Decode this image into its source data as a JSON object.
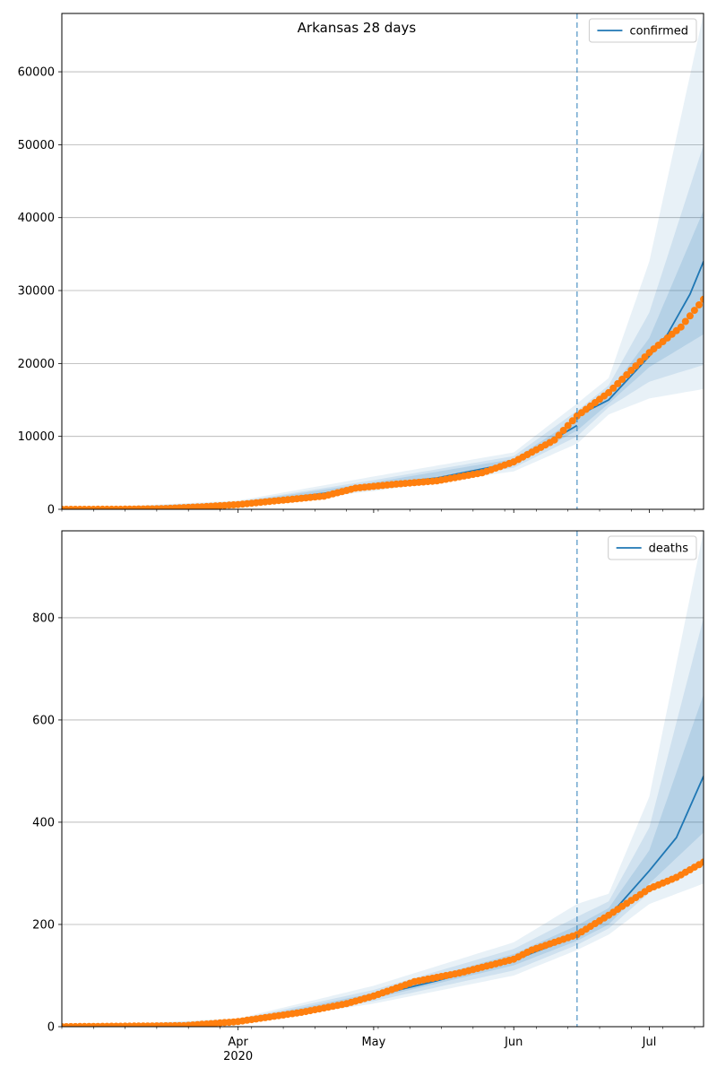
{
  "figure": {
    "title": "Arkansas 28 days"
  },
  "x_axis": {
    "start_date": "2020-02-22",
    "end_date": "2020-07-13",
    "forecast_start_date": "2020-06-15",
    "month_ticks": [
      {
        "date": "2020-04-01",
        "label": "Apr"
      },
      {
        "date": "2020-05-01",
        "label": "May"
      },
      {
        "date": "2020-06-01",
        "label": "Jun"
      },
      {
        "date": "2020-07-01",
        "label": "Jul"
      }
    ],
    "year_label": "2020",
    "year_label_date": "2020-04-01"
  },
  "colors": {
    "model_line": "#1f77b4",
    "observed": "#ff7f0e",
    "band": "#1f77b4",
    "grid": "#b0b0b0"
  },
  "chart_data": [
    {
      "type": "line",
      "panel": "top",
      "legend": [
        "confirmed"
      ],
      "legend_position": "top-right",
      "grid": "y",
      "ylim": [
        0,
        68000
      ],
      "yticks": [
        0,
        10000,
        20000,
        30000,
        40000,
        50000,
        60000
      ],
      "xlabel": "",
      "ylabel": "",
      "series": [
        {
          "name": "confirmed",
          "role": "model median",
          "points": [
            [
              "2020-02-22",
              0
            ],
            [
              "2020-03-10",
              100
            ],
            [
              "2020-03-20",
              300
            ],
            [
              "2020-04-01",
              800
            ],
            [
              "2020-04-15",
              1800
            ],
            [
              "2020-04-25",
              2600
            ],
            [
              "2020-05-01",
              3300
            ],
            [
              "2020-05-15",
              4300
            ],
            [
              "2020-06-01",
              6400
            ],
            [
              "2020-06-15",
              11500
            ]
          ]
        },
        {
          "name": "",
          "role": "model forecast",
          "points": [
            [
              "2020-06-15",
              12800
            ],
            [
              "2020-06-22",
              15000
            ],
            [
              "2020-07-01",
              21000
            ],
            [
              "2020-07-05",
              24000
            ],
            [
              "2020-07-10",
              29500
            ],
            [
              "2020-07-13",
              34000
            ]
          ]
        },
        {
          "name": "",
          "role": "observed",
          "points": [
            [
              "2020-02-22",
              0
            ],
            [
              "2020-03-05",
              10
            ],
            [
              "2020-03-15",
              80
            ],
            [
              "2020-03-25",
              380
            ],
            [
              "2020-04-01",
              650
            ],
            [
              "2020-04-10",
              1200
            ],
            [
              "2020-04-20",
              1800
            ],
            [
              "2020-04-27",
              2900
            ],
            [
              "2020-05-05",
              3400
            ],
            [
              "2020-05-15",
              3900
            ],
            [
              "2020-05-25",
              5000
            ],
            [
              "2020-06-01",
              6500
            ],
            [
              "2020-06-10",
              9500
            ],
            [
              "2020-06-15",
              12800
            ],
            [
              "2020-06-22",
              16000
            ],
            [
              "2020-07-01",
              21500
            ],
            [
              "2020-07-08",
              25000
            ],
            [
              "2020-07-13",
              28800
            ]
          ]
        }
      ],
      "bands": [
        {
          "level": "outer",
          "points": [
            [
              "2020-02-22",
              0,
              0
            ],
            [
              "2020-04-01",
              400,
              1200
            ],
            [
              "2020-05-01",
              2500,
              4500
            ],
            [
              "2020-06-01",
              5200,
              7800
            ],
            [
              "2020-06-15",
              9000,
              14500
            ],
            [
              "2020-06-22",
              13000,
              18000
            ],
            [
              "2020-07-01",
              15200,
              34000
            ],
            [
              "2020-07-13",
              16500,
              68000
            ]
          ]
        },
        {
          "level": "middle",
          "points": [
            [
              "2020-02-22",
              0,
              0
            ],
            [
              "2020-04-01",
              550,
              1050
            ],
            [
              "2020-05-01",
              2800,
              4000
            ],
            [
              "2020-06-01",
              5700,
              7300
            ],
            [
              "2020-06-15",
              10000,
              13500
            ],
            [
              "2020-06-22",
              14000,
              17000
            ],
            [
              "2020-07-01",
              17500,
              27000
            ],
            [
              "2020-07-13",
              19800,
              50000
            ]
          ]
        },
        {
          "level": "inner",
          "points": [
            [
              "2020-02-22",
              0,
              0
            ],
            [
              "2020-04-01",
              650,
              950
            ],
            [
              "2020-05-01",
              3100,
              3700
            ],
            [
              "2020-06-01",
              6100,
              6900
            ],
            [
              "2020-06-15",
              10800,
              12500
            ],
            [
              "2020-06-22",
              14500,
              16000
            ],
            [
              "2020-07-01",
              19500,
              23500
            ],
            [
              "2020-07-13",
              24000,
              41000
            ]
          ]
        }
      ]
    },
    {
      "type": "line",
      "panel": "bottom",
      "legend": [
        "deaths"
      ],
      "legend_position": "top-right",
      "grid": "y",
      "ylim": [
        0,
        970
      ],
      "yticks": [
        0,
        200,
        400,
        600,
        800
      ],
      "xlabel": "",
      "ylabel": "",
      "series": [
        {
          "name": "deaths",
          "role": "model median",
          "points": [
            [
              "2020-02-22",
              0
            ],
            [
              "2020-03-20",
              2
            ],
            [
              "2020-04-01",
              10
            ],
            [
              "2020-04-15",
              25
            ],
            [
              "2020-05-01",
              60
            ],
            [
              "2020-05-15",
              90
            ],
            [
              "2020-06-01",
              130
            ],
            [
              "2020-06-15",
              178
            ]
          ]
        },
        {
          "name": "",
          "role": "model forecast",
          "points": [
            [
              "2020-06-15",
              185
            ],
            [
              "2020-06-22",
              215
            ],
            [
              "2020-07-01",
              305
            ],
            [
              "2020-07-07",
              370
            ],
            [
              "2020-07-13",
              490
            ]
          ]
        },
        {
          "name": "",
          "role": "observed",
          "points": [
            [
              "2020-02-22",
              0
            ],
            [
              "2020-03-20",
              2
            ],
            [
              "2020-04-01",
              10
            ],
            [
              "2020-04-15",
              28
            ],
            [
              "2020-04-25",
              45
            ],
            [
              "2020-05-01",
              60
            ],
            [
              "2020-05-10",
              88
            ],
            [
              "2020-05-20",
              105
            ],
            [
              "2020-06-01",
              132
            ],
            [
              "2020-06-05",
              150
            ],
            [
              "2020-06-15",
              180
            ],
            [
              "2020-06-22",
              218
            ],
            [
              "2020-07-01",
              270
            ],
            [
              "2020-07-07",
              292
            ],
            [
              "2020-07-13",
              322
            ]
          ]
        }
      ],
      "bands": [
        {
          "level": "outer",
          "points": [
            [
              "2020-02-22",
              0,
              0
            ],
            [
              "2020-04-01",
              6,
              16
            ],
            [
              "2020-05-01",
              45,
              80
            ],
            [
              "2020-06-01",
              100,
              165
            ],
            [
              "2020-06-15",
              150,
              240
            ],
            [
              "2020-06-22",
              180,
              260
            ],
            [
              "2020-07-01",
              240,
              450
            ],
            [
              "2020-07-13",
              280,
              970
            ]
          ]
        },
        {
          "level": "middle",
          "points": [
            [
              "2020-02-22",
              0,
              0
            ],
            [
              "2020-04-01",
              8,
              14
            ],
            [
              "2020-05-01",
              50,
              72
            ],
            [
              "2020-06-01",
              110,
              152
            ],
            [
              "2020-06-15",
              160,
              215
            ],
            [
              "2020-06-22",
              192,
              245
            ],
            [
              "2020-07-01",
              262,
              390
            ],
            [
              "2020-07-13",
              330,
              800
            ]
          ]
        },
        {
          "level": "inner",
          "points": [
            [
              "2020-02-22",
              0,
              0
            ],
            [
              "2020-04-01",
              9,
              12
            ],
            [
              "2020-05-01",
              55,
              66
            ],
            [
              "2020-06-01",
              120,
              142
            ],
            [
              "2020-06-15",
              168,
              198
            ],
            [
              "2020-06-22",
              200,
              232
            ],
            [
              "2020-07-01",
              280,
              345
            ],
            [
              "2020-07-13",
              380,
              650
            ]
          ]
        }
      ]
    }
  ]
}
